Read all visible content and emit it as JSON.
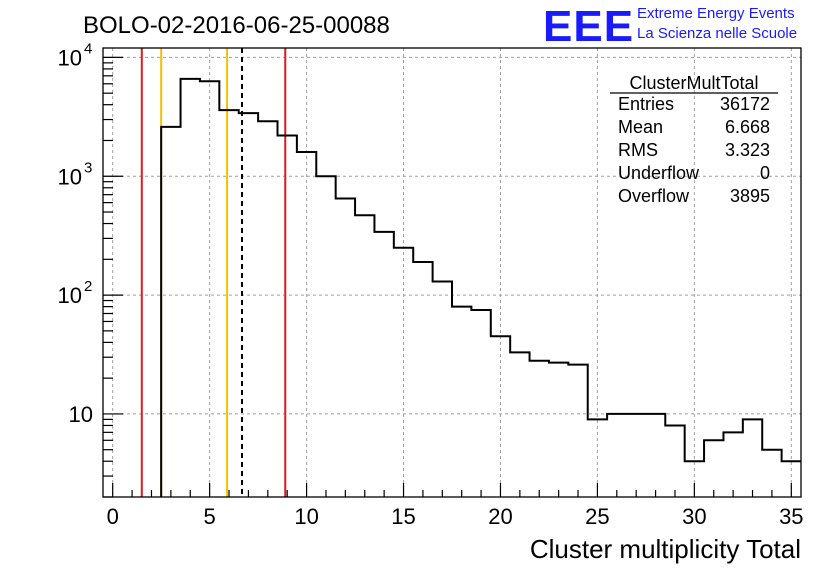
{
  "header": {
    "title": "BOLO-02-2016-06-25-00088",
    "logo_text": "EEE",
    "logo_line1": "Extreme Energy Events",
    "logo_line2": "La Scienza nelle Scuole"
  },
  "stats": {
    "name": "ClusterMultTotal",
    "rows": [
      {
        "label": "Entries",
        "value": "36172"
      },
      {
        "label": "Mean",
        "value": "6.668"
      },
      {
        "label": "RMS",
        "value": "3.323"
      },
      {
        "label": "Underflow",
        "value": "0"
      },
      {
        "label": "Overflow",
        "value": "3895"
      }
    ]
  },
  "colors": {
    "histogram": "#000000",
    "red_lines": "#e0191b",
    "yellow_lines": "#f5c000",
    "mean_line": "#000000",
    "grid": "#a0a0a0",
    "logo_blue": "#1a1aff"
  },
  "chart_data": {
    "type": "histogram",
    "xlabel": "Cluster multiplicity Total",
    "ylabel": "",
    "xlim": [
      -0.5,
      35.5
    ],
    "ylim": [
      2,
      12000
    ],
    "yscale": "log",
    "grid": true,
    "bin_width": 1,
    "bin_edges_start": 2.5,
    "counts": [
      2600,
      6600,
      6300,
      3600,
      3400,
      2900,
      2200,
      1600,
      1000,
      650,
      470,
      340,
      250,
      190,
      130,
      80,
      75,
      45,
      33,
      28,
      27,
      26,
      9,
      10,
      10,
      10,
      8,
      4,
      6,
      7,
      9,
      5,
      4
    ],
    "x_ticks": [
      0,
      5,
      10,
      15,
      20,
      25,
      30,
      35
    ],
    "y_ticks": [
      {
        "value": 10000,
        "label": "10",
        "exp": "4"
      },
      {
        "value": 1000,
        "label": "10",
        "exp": "3"
      },
      {
        "value": 100,
        "label": "10",
        "exp": "2"
      },
      {
        "value": 10,
        "label": "10",
        "exp": ""
      }
    ],
    "vertical_lines": [
      {
        "x": 1.5,
        "color": "red",
        "style": "solid"
      },
      {
        "x": 8.9,
        "color": "red",
        "style": "solid"
      },
      {
        "x": 2.5,
        "color": "yellow",
        "style": "solid"
      },
      {
        "x": 5.9,
        "color": "yellow",
        "style": "solid"
      },
      {
        "x": 6.67,
        "color": "black",
        "style": "dashed"
      }
    ]
  }
}
